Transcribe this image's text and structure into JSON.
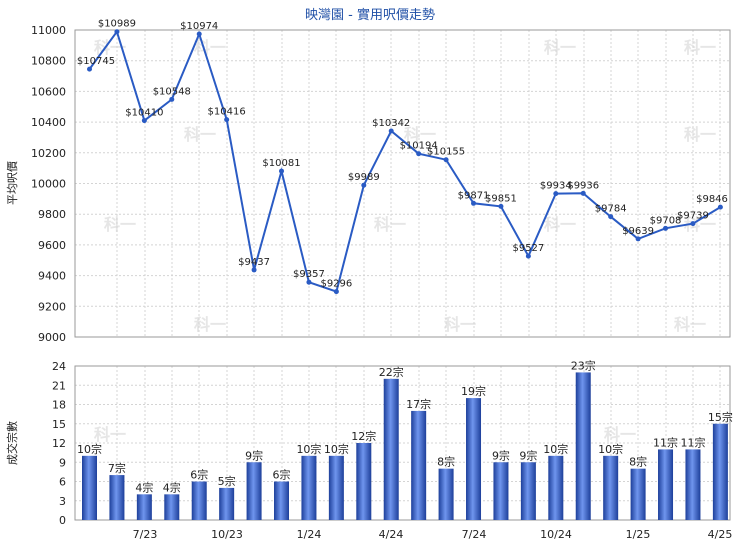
{
  "chart_data": [
    {
      "type": "line",
      "title": "映灣園 - 實用呎價走勢",
      "ylabel": "平均呎價",
      "ylim": [
        9000,
        11000
      ],
      "yticks": [
        9000,
        9200,
        9400,
        9600,
        9800,
        10000,
        10200,
        10400,
        10600,
        10800,
        11000
      ],
      "grid": true,
      "color": "#2a5bc4",
      "values": [
        10745,
        10989,
        10410,
        10548,
        10974,
        10416,
        9437,
        10081,
        9357,
        9296,
        9989,
        10342,
        10194,
        10155,
        9871,
        9851,
        9527,
        9934,
        9936,
        9784,
        9639,
        9708,
        9739,
        9846
      ],
      "labels": [
        "$10745",
        "$10989",
        "$10410",
        "$10548",
        "$10974",
        "$10416",
        "$9437",
        "$10081",
        "$9357",
        "$9296",
        "$9989",
        "$10342",
        "$10194",
        "$10155",
        "$9871",
        "$9851",
        "$9527",
        "$9934",
        "$9936",
        "$9784",
        "$9639",
        "$9708",
        "$9739",
        "$9846"
      ]
    },
    {
      "type": "bar",
      "ylabel": "成交宗數",
      "ylim": [
        0,
        24
      ],
      "yticks": [
        0,
        3,
        6,
        9,
        12,
        15,
        18,
        21,
        24
      ],
      "grid": true,
      "color": "#2f5fd0",
      "x_tick_labels": [
        "7/23",
        "10/23",
        "1/24",
        "4/24",
        "7/24",
        "10/24",
        "1/25",
        "4/25"
      ],
      "values": [
        10,
        7,
        4,
        4,
        6,
        5,
        9,
        6,
        10,
        10,
        12,
        22,
        17,
        8,
        19,
        9,
        9,
        10,
        23,
        10,
        8,
        11,
        11,
        15
      ],
      "labels": [
        "10宗",
        "7宗",
        "4宗",
        "4宗",
        "6宗",
        "5宗",
        "9宗",
        "6宗",
        "10宗",
        "10宗",
        "12宗",
        "22宗",
        "17宗",
        "8宗",
        "19宗",
        "9宗",
        "9宗",
        "10宗",
        "23宗",
        "10宗",
        "8宗",
        "11宗",
        "11宗",
        "15宗"
      ]
    }
  ],
  "watermark": "科一"
}
